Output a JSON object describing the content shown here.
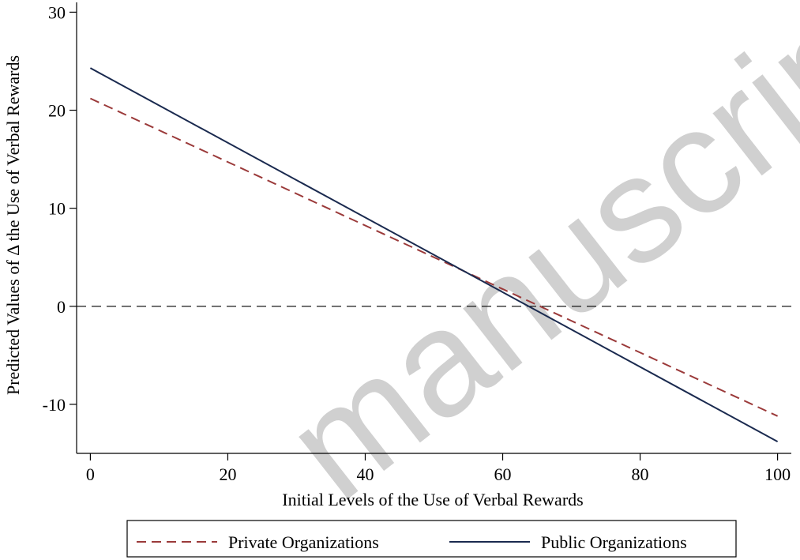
{
  "chart_data": {
    "type": "line",
    "title": "",
    "xlabel": "Initial Levels of the Use of Verbal Rewards",
    "ylabel": "Predicted Values of Δ the Use of Verbal Rewards",
    "xlim": [
      -2,
      102
    ],
    "ylim": [
      -15,
      31
    ],
    "x_ticks": [
      0,
      20,
      40,
      60,
      80,
      100
    ],
    "y_ticks": [
      -10,
      0,
      10,
      20,
      30
    ],
    "grid": false,
    "reference_line": {
      "y": 0,
      "style": "dashed"
    },
    "series": [
      {
        "name": "Private Organizations",
        "style": "dashed",
        "color": "#9b3a3a",
        "x": [
          0,
          100
        ],
        "y": [
          21.2,
          -11.2
        ]
      },
      {
        "name": "Public Organizations",
        "style": "solid",
        "color": "#1a2a4f",
        "x": [
          0,
          100
        ],
        "y": [
          24.3,
          -13.8
        ]
      }
    ],
    "legend": {
      "position": "bottom"
    },
    "watermark": "manuscript"
  }
}
